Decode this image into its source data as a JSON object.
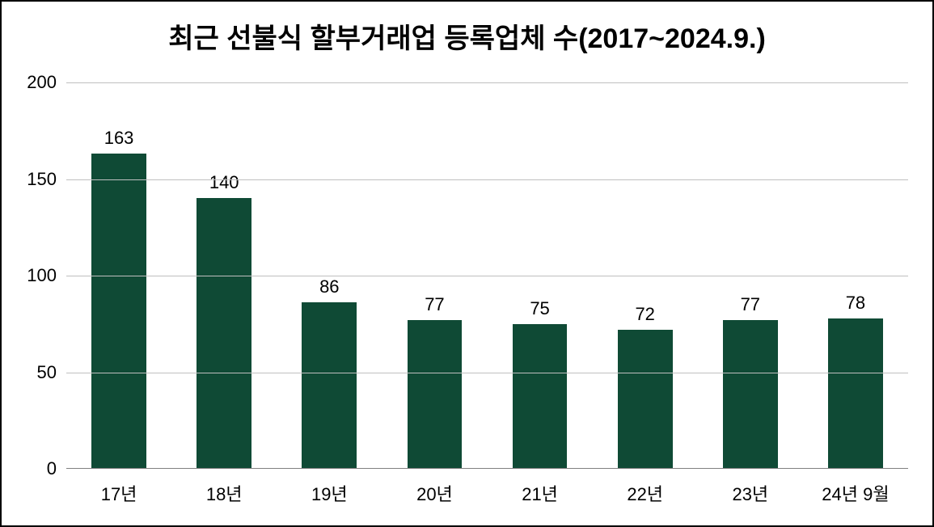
{
  "chart": {
    "type": "bar",
    "title": "최근 선불식 할부거래업 등록업체 수(2017~2024.9.)",
    "title_fontsize": 34,
    "title_fontweight": 700,
    "title_color": "#000000",
    "background_color": "#ffffff",
    "frame_border_color": "#000000",
    "frame_border_width": 2,
    "categories": [
      "17년",
      "18년",
      "19년",
      "20년",
      "21년",
      "22년",
      "23년",
      "24년 9월"
    ],
    "values": [
      163,
      140,
      86,
      77,
      75,
      72,
      77,
      78
    ],
    "bar_color": "#0f4a35",
    "bar_width_ratio": 0.52,
    "value_label_fontsize": 22,
    "value_label_color": "#000000",
    "x_tick_fontsize": 22,
    "x_tick_color": "#000000",
    "y": {
      "min": 0,
      "max": 200,
      "tick_step": 50,
      "ticks": [
        0,
        50,
        100,
        150,
        200
      ],
      "tick_fontsize": 22,
      "tick_color": "#000000"
    },
    "gridline_color": "#bfbfbf",
    "gridline_width": 1,
    "baseline_color": "#808080",
    "baseline_width": 1
  }
}
